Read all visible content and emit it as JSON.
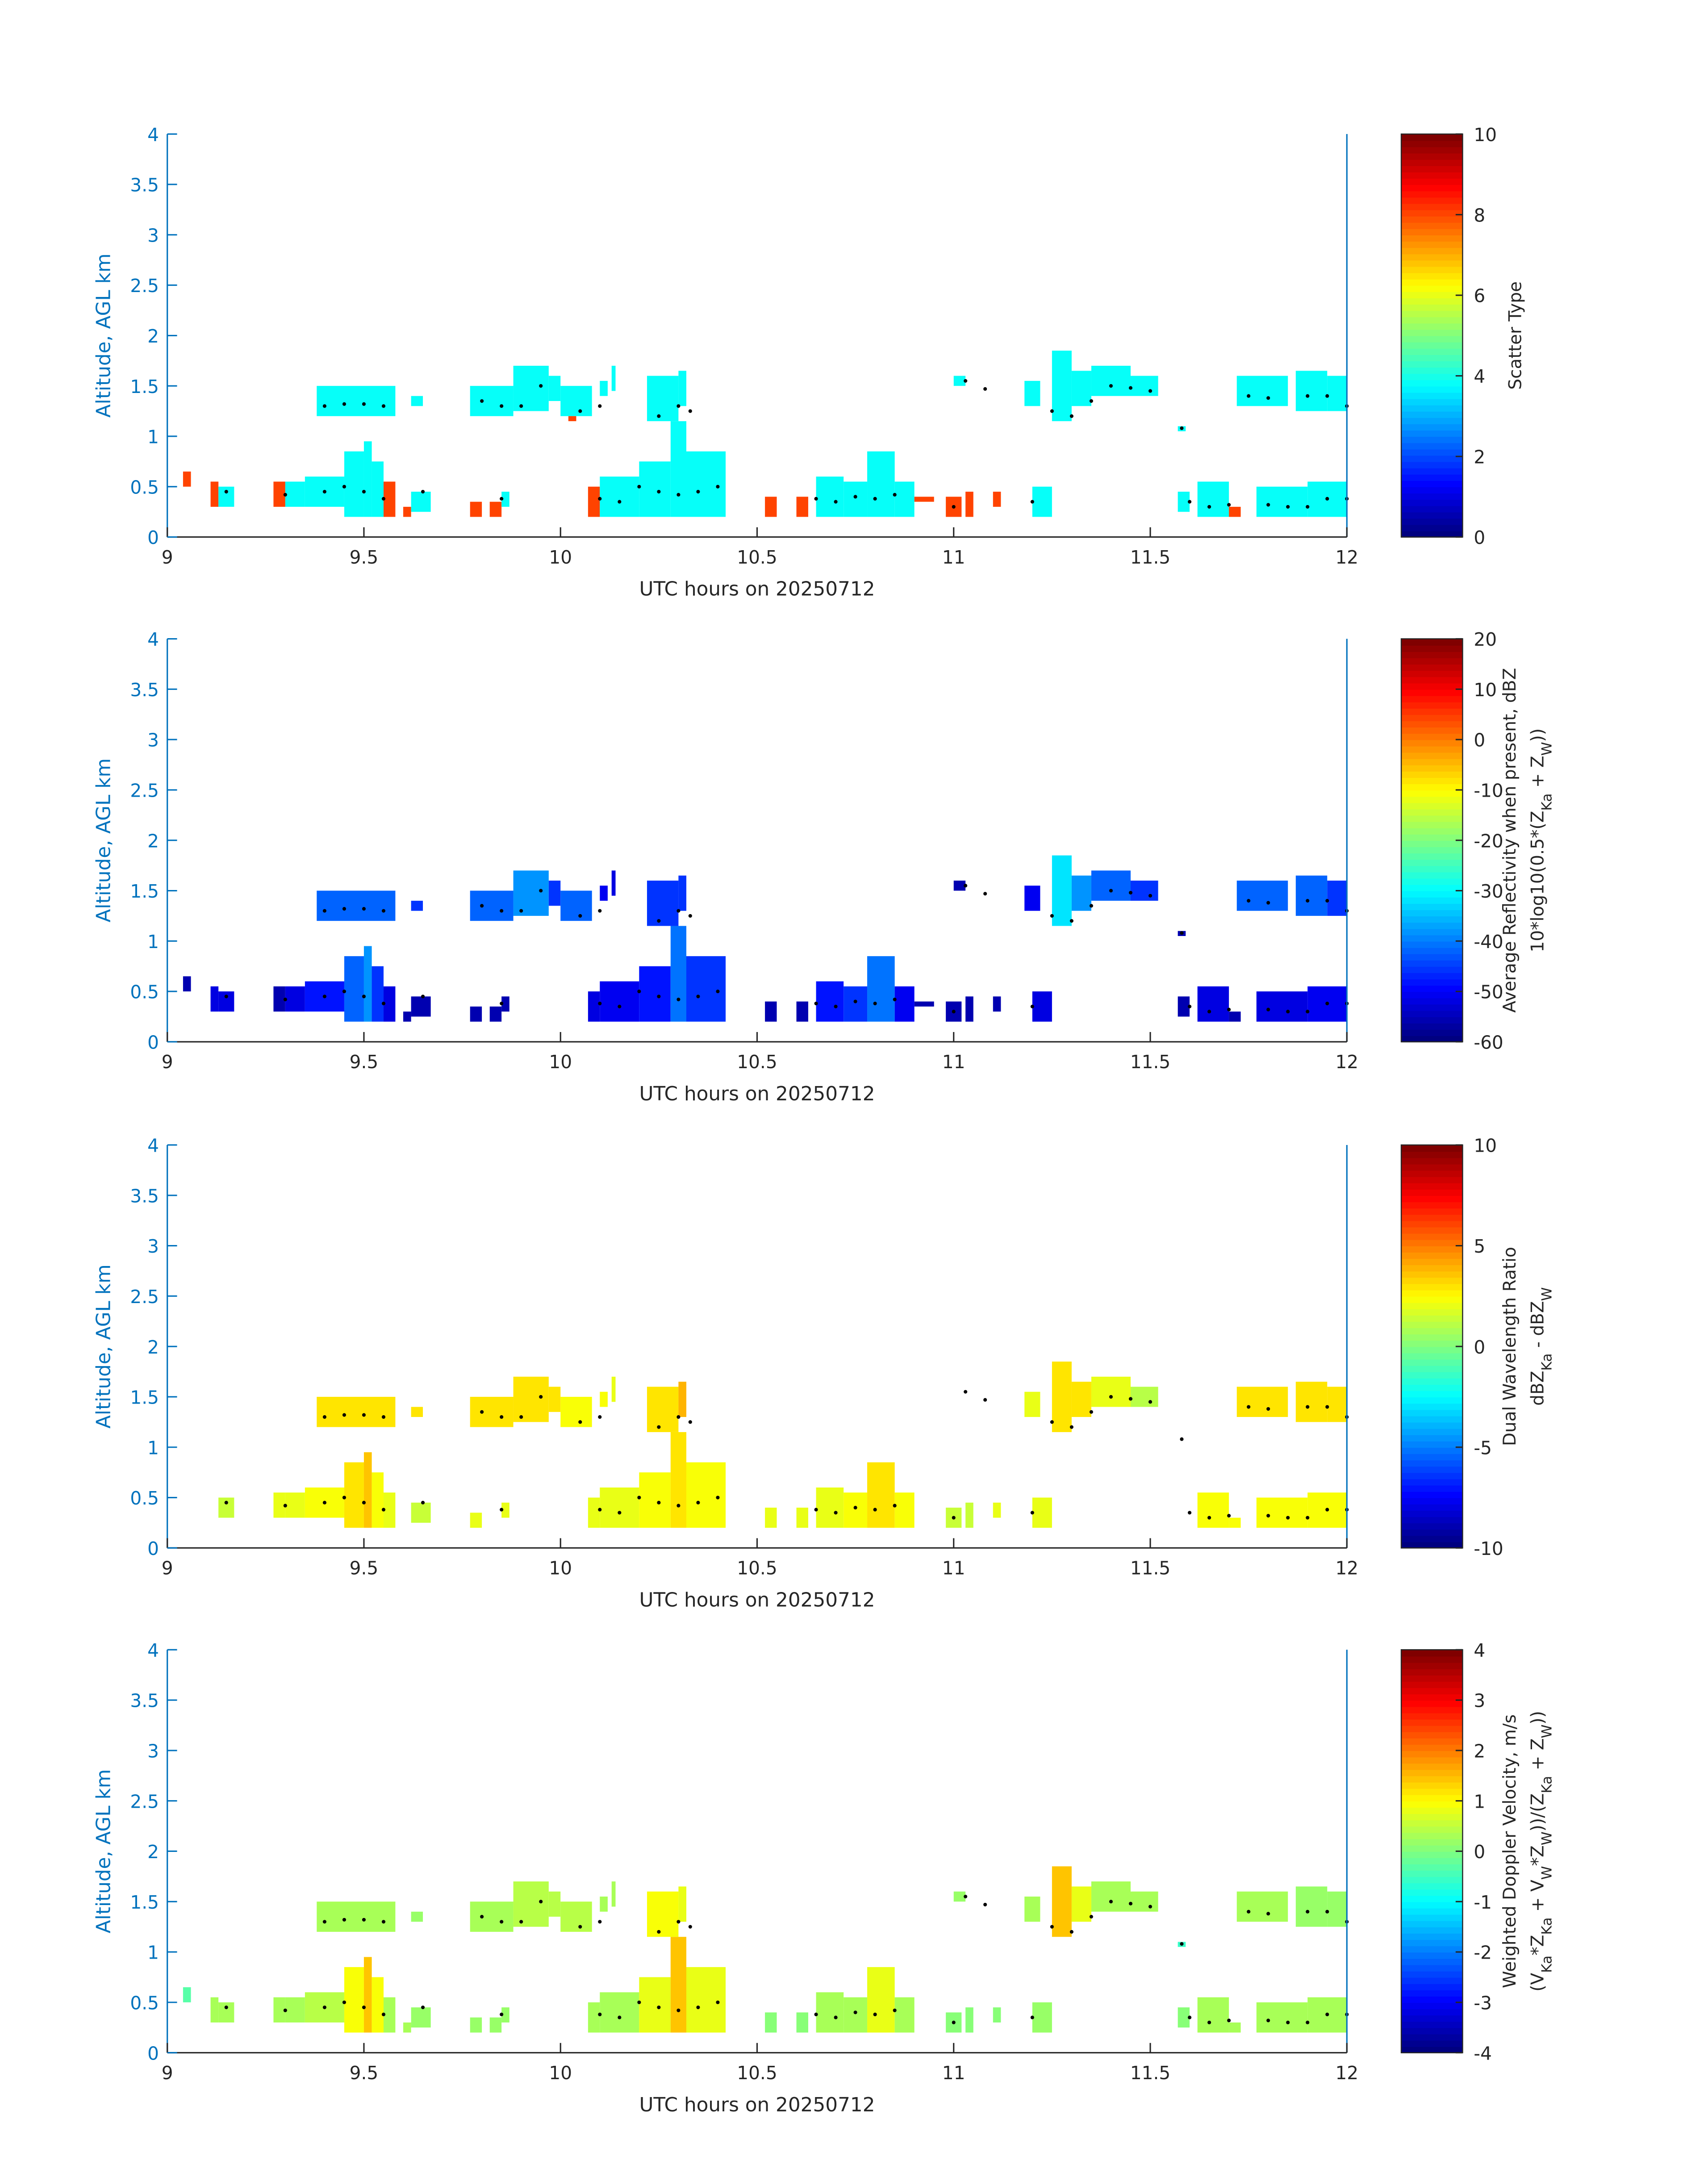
{
  "axis_color": "#0072BD",
  "colormap": "jet",
  "echo_columns_fields": [
    "t_start_hr",
    "t_end_hr",
    "alt_bottom_km",
    "alt_top_km"
  ],
  "echo_columns": [
    [
      9.04,
      9.06,
      0.5,
      0.65
    ],
    [
      9.11,
      9.13,
      0.3,
      0.55
    ],
    [
      9.13,
      9.17,
      0.3,
      0.5
    ],
    [
      9.27,
      9.3,
      0.3,
      0.55
    ],
    [
      9.3,
      9.35,
      0.3,
      0.55
    ],
    [
      9.35,
      9.45,
      0.3,
      0.6
    ],
    [
      9.45,
      9.5,
      0.2,
      0.85
    ],
    [
      9.5,
      9.52,
      0.2,
      0.95
    ],
    [
      9.52,
      9.55,
      0.2,
      0.75
    ],
    [
      9.55,
      9.58,
      0.2,
      0.55
    ],
    [
      9.6,
      9.62,
      0.2,
      0.3
    ],
    [
      9.62,
      9.67,
      0.25,
      0.45
    ],
    [
      9.77,
      9.8,
      0.2,
      0.35
    ],
    [
      9.82,
      9.85,
      0.2,
      0.35
    ],
    [
      9.85,
      9.87,
      0.3,
      0.45
    ],
    [
      10.07,
      10.1,
      0.2,
      0.5
    ],
    [
      10.1,
      10.2,
      0.2,
      0.6
    ],
    [
      10.2,
      10.28,
      0.2,
      0.75
    ],
    [
      10.28,
      10.32,
      0.2,
      1.15
    ],
    [
      10.32,
      10.42,
      0.2,
      0.85
    ],
    [
      10.52,
      10.55,
      0.2,
      0.4
    ],
    [
      10.6,
      10.63,
      0.2,
      0.4
    ],
    [
      10.65,
      10.72,
      0.2,
      0.6
    ],
    [
      10.72,
      10.78,
      0.2,
      0.55
    ],
    [
      10.78,
      10.85,
      0.2,
      0.85
    ],
    [
      10.85,
      10.9,
      0.2,
      0.55
    ],
    [
      10.9,
      10.95,
      0.35,
      0.4
    ],
    [
      10.98,
      11.02,
      0.2,
      0.4
    ],
    [
      11.03,
      11.05,
      0.2,
      0.45
    ],
    [
      11.1,
      11.12,
      0.3,
      0.45
    ],
    [
      11.2,
      11.25,
      0.2,
      0.5
    ],
    [
      11.57,
      11.6,
      0.25,
      0.45
    ],
    [
      11.62,
      11.7,
      0.2,
      0.55
    ],
    [
      11.7,
      11.73,
      0.2,
      0.3
    ],
    [
      11.77,
      11.9,
      0.2,
      0.5
    ],
    [
      11.9,
      12.0,
      0.2,
      0.55
    ],
    [
      9.38,
      9.58,
      1.2,
      1.5
    ],
    [
      9.62,
      9.65,
      1.3,
      1.4
    ],
    [
      9.77,
      9.88,
      1.2,
      1.5
    ],
    [
      9.88,
      9.97,
      1.25,
      1.7
    ],
    [
      9.97,
      10.0,
      1.35,
      1.6
    ],
    [
      10.0,
      10.08,
      1.2,
      1.5
    ],
    [
      10.02,
      10.04,
      1.15,
      1.2
    ],
    [
      10.1,
      10.12,
      1.4,
      1.55
    ],
    [
      10.13,
      10.14,
      1.45,
      1.7
    ],
    [
      10.22,
      10.3,
      1.15,
      1.6
    ],
    [
      10.3,
      10.32,
      1.3,
      1.65
    ],
    [
      11.0,
      11.03,
      1.5,
      1.6
    ],
    [
      11.18,
      11.22,
      1.3,
      1.55
    ],
    [
      11.25,
      11.3,
      1.15,
      1.85
    ],
    [
      11.3,
      11.35,
      1.3,
      1.65
    ],
    [
      11.35,
      11.45,
      1.4,
      1.7
    ],
    [
      11.45,
      11.52,
      1.4,
      1.6
    ],
    [
      11.57,
      11.59,
      1.05,
      1.1
    ],
    [
      11.72,
      11.85,
      1.3,
      1.6
    ],
    [
      11.87,
      11.95,
      1.25,
      1.65
    ],
    [
      11.95,
      12.0,
      1.25,
      1.6
    ]
  ],
  "marker_points": [
    [
      9.4,
      1.3
    ],
    [
      9.45,
      1.32
    ],
    [
      9.5,
      1.32
    ],
    [
      9.55,
      1.3
    ],
    [
      9.8,
      1.35
    ],
    [
      9.85,
      1.3
    ],
    [
      9.9,
      1.3
    ],
    [
      9.95,
      1.5
    ],
    [
      10.05,
      1.25
    ],
    [
      10.1,
      1.3
    ],
    [
      10.25,
      1.2
    ],
    [
      10.3,
      1.3
    ],
    [
      10.33,
      1.25
    ],
    [
      11.03,
      1.55
    ],
    [
      11.08,
      1.47
    ],
    [
      11.25,
      1.25
    ],
    [
      11.3,
      1.2
    ],
    [
      11.35,
      1.35
    ],
    [
      11.4,
      1.5
    ],
    [
      11.45,
      1.48
    ],
    [
      11.5,
      1.45
    ],
    [
      11.58,
      1.08
    ],
    [
      11.75,
      1.4
    ],
    [
      11.8,
      1.38
    ],
    [
      11.9,
      1.4
    ],
    [
      11.95,
      1.4
    ],
    [
      12.0,
      1.3
    ],
    [
      9.15,
      0.45
    ],
    [
      9.3,
      0.42
    ],
    [
      9.4,
      0.45
    ],
    [
      9.45,
      0.5
    ],
    [
      9.5,
      0.45
    ],
    [
      9.55,
      0.38
    ],
    [
      9.65,
      0.45
    ],
    [
      9.85,
      0.38
    ],
    [
      10.1,
      0.38
    ],
    [
      10.15,
      0.35
    ],
    [
      10.2,
      0.5
    ],
    [
      10.25,
      0.45
    ],
    [
      10.3,
      0.42
    ],
    [
      10.35,
      0.45
    ],
    [
      10.4,
      0.5
    ],
    [
      10.65,
      0.38
    ],
    [
      10.7,
      0.35
    ],
    [
      10.75,
      0.4
    ],
    [
      10.8,
      0.38
    ],
    [
      10.85,
      0.42
    ],
    [
      11.0,
      0.3
    ],
    [
      11.2,
      0.35
    ],
    [
      11.6,
      0.35
    ],
    [
      11.65,
      0.3
    ],
    [
      11.7,
      0.32
    ],
    [
      11.8,
      0.32
    ],
    [
      11.85,
      0.3
    ],
    [
      11.9,
      0.3
    ],
    [
      11.95,
      0.38
    ],
    [
      12.0,
      0.38
    ]
  ],
  "chart_data": [
    {
      "type": "heatmap",
      "xlabel": "UTC hours on 20250712",
      "ylabel": "Altitude, AGL km",
      "xlim": [
        9,
        12
      ],
      "ylim": [
        0,
        4
      ],
      "xticks": [
        "9",
        "9.5",
        "10",
        "10.5",
        "11",
        "11.5",
        "12"
      ],
      "yticks": [
        "0",
        "0.5",
        "1",
        "1.5",
        "2",
        "2.5",
        "3",
        "3.5",
        "4"
      ],
      "colorbar": {
        "label_lines": [
          [
            {
              "t": "Scatter Type"
            }
          ]
        ],
        "clim": [
          0,
          10
        ],
        "ticks": [
          "0",
          "2",
          "4",
          "6",
          "8",
          "10"
        ]
      },
      "values": [
        8,
        8,
        3.8,
        8,
        3.8,
        3.8,
        3.8,
        3.8,
        3.8,
        8,
        8,
        3.8,
        8,
        8,
        3.8,
        8,
        3.8,
        3.8,
        3.8,
        3.8,
        8,
        8,
        3.8,
        3.8,
        3.8,
        3.8,
        8,
        8,
        8,
        8,
        3.8,
        3.8,
        3.8,
        8,
        3.8,
        3.8,
        3.8,
        3.8,
        3.8,
        3.8,
        3.8,
        3.8,
        8,
        3.8,
        3.8,
        3.8,
        3.8,
        3.8,
        3.8,
        3.8,
        3.8,
        3.8,
        3.8,
        3.8,
        3.8,
        3.8,
        3.8
      ]
    },
    {
      "type": "heatmap",
      "xlabel": "UTC hours on 20250712",
      "ylabel": "Altitude, AGL km",
      "xlim": [
        9,
        12
      ],
      "ylim": [
        0,
        4
      ],
      "xticks": [
        "9",
        "9.5",
        "10",
        "10.5",
        "11",
        "11.5",
        "12"
      ],
      "yticks": [
        "0",
        "0.5",
        "1",
        "1.5",
        "2",
        "2.5",
        "3",
        "3.5",
        "4"
      ],
      "colorbar": {
        "label_lines": [
          [
            {
              "t": "Average Reflectivity when present, dBZ"
            }
          ],
          [
            {
              "t": "10*log10(0.5*(Z"
            },
            {
              "t": "Ka",
              "sub": true
            },
            {
              "t": " + Z"
            },
            {
              "t": "W",
              "sub": true
            },
            {
              "t": "))"
            }
          ]
        ],
        "clim": [
          -60,
          20
        ],
        "ticks": [
          "-60",
          "-50",
          "-40",
          "-30",
          "-20",
          "-10",
          "0",
          "10",
          "20"
        ]
      },
      "values": [
        -55,
        -52,
        -52,
        -55,
        -52,
        -48,
        -42,
        -38,
        -45,
        -52,
        -55,
        -55,
        -56,
        -56,
        -55,
        -52,
        -50,
        -48,
        -40,
        -45,
        -56,
        -56,
        -48,
        -45,
        -40,
        -50,
        -56,
        -56,
        -56,
        -56,
        -52,
        -55,
        -52,
        -55,
        -52,
        -50,
        -42,
        -45,
        -42,
        -38,
        -45,
        -42,
        null,
        -50,
        -52,
        -45,
        -45,
        -55,
        -50,
        -32,
        -38,
        -42,
        -45,
        -56,
        -42,
        -42,
        -45
      ]
    },
    {
      "type": "heatmap",
      "xlabel": "UTC hours on 20250712",
      "ylabel": "Altitude, AGL km",
      "xlim": [
        9,
        12
      ],
      "ylim": [
        0,
        4
      ],
      "xticks": [
        "9",
        "9.5",
        "10",
        "10.5",
        "11",
        "11.5",
        "12"
      ],
      "yticks": [
        "0",
        "0.5",
        "1",
        "1.5",
        "2",
        "2.5",
        "3",
        "3.5",
        "4"
      ],
      "colorbar": {
        "label_lines": [
          [
            {
              "t": "Dual Wavelength Ratio"
            }
          ],
          [
            {
              "t": "dBZ"
            },
            {
              "t": "Ka",
              "sub": true
            },
            {
              "t": " - dBZ"
            },
            {
              "t": "W",
              "sub": true
            }
          ]
        ],
        "clim": [
          -10,
          10
        ],
        "ticks": [
          "-10",
          "-5",
          "0",
          "5",
          "10"
        ]
      },
      "values": [
        null,
        null,
        1.5,
        2,
        2,
        2.5,
        3,
        3.5,
        2.5,
        2,
        null,
        1.5,
        2,
        null,
        2,
        2,
        2,
        2.5,
        3,
        2.5,
        2,
        2,
        2,
        2.5,
        3,
        2.5,
        null,
        1.5,
        1.5,
        2,
        2,
        null,
        2.5,
        2.5,
        2.5,
        2.5,
        3,
        3,
        3,
        3,
        3,
        2.5,
        null,
        2.5,
        2,
        3,
        4,
        null,
        2,
        3,
        3,
        2,
        1,
        null,
        3,
        3,
        3
      ]
    },
    {
      "type": "heatmap",
      "xlabel": "UTC hours on 20250712",
      "ylabel": "Altitude, AGL km",
      "xlim": [
        9,
        12
      ],
      "ylim": [
        0,
        4
      ],
      "xticks": [
        "9",
        "9.5",
        "10",
        "10.5",
        "11",
        "11.5",
        "12"
      ],
      "yticks": [
        "0",
        "0.5",
        "1",
        "1.5",
        "2",
        "2.5",
        "3",
        "3.5",
        "4"
      ],
      "colorbar": {
        "label_lines": [
          [
            {
              "t": "Weighted Doppler Velocity, m/s"
            }
          ],
          [
            {
              "t": "(V"
            },
            {
              "t": "Ka",
              "sub": true
            },
            {
              "t": "*Z"
            },
            {
              "t": "Ka",
              "sub": true
            },
            {
              "t": " + V"
            },
            {
              "t": "W",
              "sub": true
            },
            {
              "t": "*Z"
            },
            {
              "t": "W",
              "sub": true
            },
            {
              "t": "))/(Z"
            },
            {
              "t": "Ka",
              "sub": true
            },
            {
              "t": " + Z"
            },
            {
              "t": "W",
              "sub": true
            },
            {
              "t": "))"
            }
          ]
        ],
        "clim": [
          -4,
          4
        ],
        "ticks": [
          "-4",
          "-3",
          "-2",
          "-1",
          "0",
          "1",
          "2",
          "3",
          "4"
        ]
      },
      "values": [
        -0.3,
        0.3,
        0.3,
        0.3,
        0.3,
        0.5,
        1,
        1.5,
        1,
        0.3,
        0.3,
        0.2,
        0.2,
        0.2,
        0.2,
        0.3,
        0.3,
        0.8,
        1.5,
        0.8,
        0.1,
        0.1,
        0.3,
        0.3,
        0.8,
        0.3,
        null,
        0.1,
        0.1,
        0.1,
        0.2,
        0.1,
        0.3,
        0.3,
        0.3,
        0.3,
        0.3,
        0.2,
        0.3,
        0.5,
        0.5,
        0.5,
        null,
        0.3,
        0.3,
        1,
        0.8,
        0.2,
        0.3,
        1.5,
        0.8,
        0.3,
        0.3,
        -0.5,
        0.3,
        0.2,
        0.2
      ]
    }
  ]
}
